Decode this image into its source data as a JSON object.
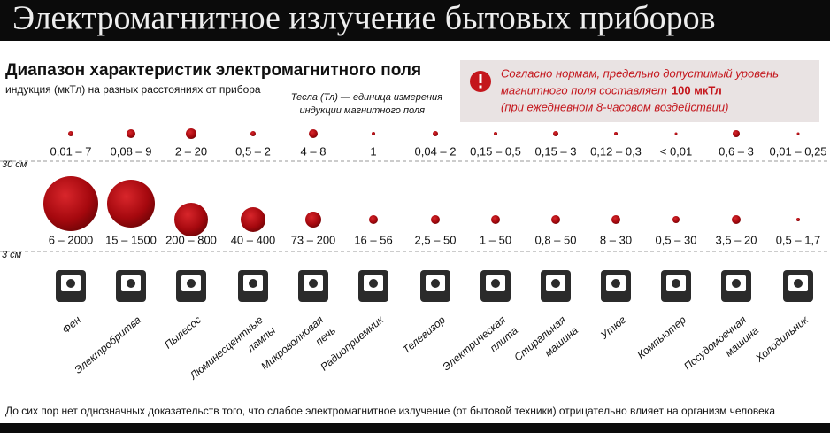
{
  "title": "Электромагнитное излучение бытовых приборов",
  "subtitle": "Диапазон характеристик электромагнитного поля",
  "units_note": "индукция (мкТл) на разных расстояниях от прибора",
  "tesla_note": [
    "Тесла (Тл) — единица измерения",
    "индукции магнитного поля"
  ],
  "norm_note": {
    "line1": "Согласно нормам, предельно допустимый уровень",
    "line2": "магнитного поля составляет",
    "value": "100 мкТл",
    "line3": "(при ежедневном 8-часовом воздействии)"
  },
  "distances": [
    "30 см",
    "3 см"
  ],
  "devices": [
    {
      "name": [
        "Фен"
      ],
      "range_30cm": "0,01 – 7",
      "range_3cm": "6 – 2000"
    },
    {
      "name": [
        "Электробритва"
      ],
      "range_30cm": "0,08 – 9",
      "range_3cm": "15 – 1500"
    },
    {
      "name": [
        "Пылесос"
      ],
      "range_30cm": "2 – 20",
      "range_3cm": "200 – 800"
    },
    {
      "name": [
        "Люминесцентные",
        "лампы"
      ],
      "range_30cm": "0,5 – 2",
      "range_3cm": "40 – 400"
    },
    {
      "name": [
        "Микроволновая",
        "печь"
      ],
      "range_30cm": "4 – 8",
      "range_3cm": "73 – 200"
    },
    {
      "name": [
        "Радиоприемник"
      ],
      "range_30cm": "1",
      "range_3cm": "16 – 56"
    },
    {
      "name": [
        "Телевизор"
      ],
      "range_30cm": "0,04 – 2",
      "range_3cm": "2,5 – 50"
    },
    {
      "name": [
        "Электрическая",
        "плита"
      ],
      "range_30cm": "0,15 – 0,5",
      "range_3cm": "1 – 50"
    },
    {
      "name": [
        "Стиральная",
        "машина"
      ],
      "range_30cm": "0,15 – 3",
      "range_3cm": "0,8 – 50"
    },
    {
      "name": [
        "Утюг"
      ],
      "range_30cm": "0,12 – 0,3",
      "range_3cm": "8 – 30"
    },
    {
      "name": [
        "Компьютер"
      ],
      "range_30cm": "< 0,01",
      "range_3cm": "0,5 – 30"
    },
    {
      "name": [
        "Посудомоечная",
        "машина"
      ],
      "range_30cm": "0,6 – 3",
      "range_3cm": "3,5 – 20"
    },
    {
      "name": [
        "Холодильник"
      ],
      "range_30cm": "0,01 – 0,25",
      "range_3cm": "0,5 – 1,7"
    }
  ],
  "footer": "До сих пор нет однозначных доказательств того, что слабое электромагнитное излучение (от бытовой техники) отрицательно влияет на организм человека"
}
